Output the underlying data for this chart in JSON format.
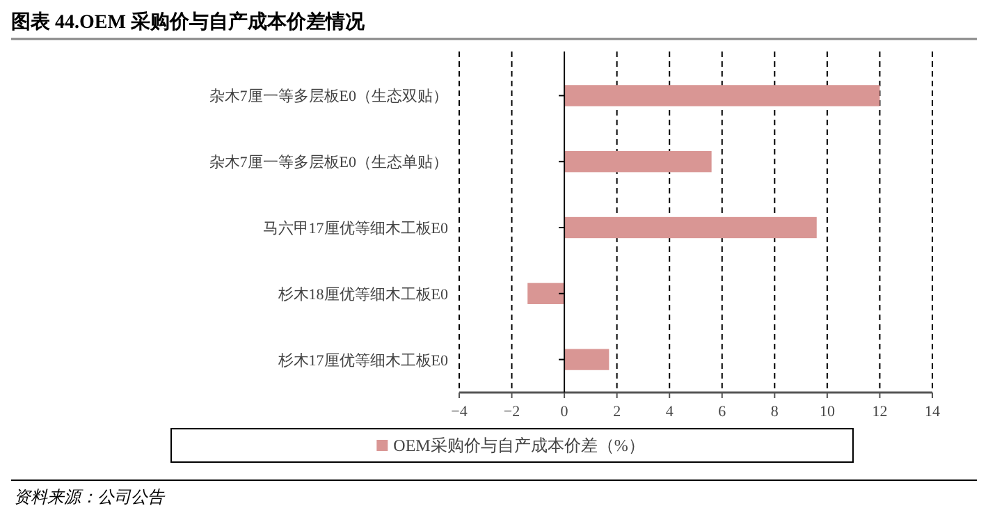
{
  "chart_data": {
    "type": "bar",
    "orientation": "horizontal",
    "title": "图表 44.OEM 采购价与自产成本价差情况",
    "categories": [
      "杂木7厘一等多层板E0（生态双贴）",
      "杂木7厘一等多层板E0（生态单贴）",
      "马六甲17厘优等细木工板E0",
      "杉木18厘优等细木工板E0",
      "杉木17厘优等细木工板E0"
    ],
    "series": [
      {
        "name": "OEM采购价与自产成本价差（%）",
        "color": "#d99694",
        "values": [
          12.0,
          5.6,
          9.6,
          -1.4,
          1.7
        ]
      }
    ],
    "xlim": [
      -4,
      14
    ],
    "xticks": [
      -4,
      -2,
      0,
      2,
      4,
      6,
      8,
      10,
      12,
      14
    ],
    "grid": "x",
    "legend": "bottom",
    "annotations": [
      "资料来源：公司公告"
    ]
  }
}
